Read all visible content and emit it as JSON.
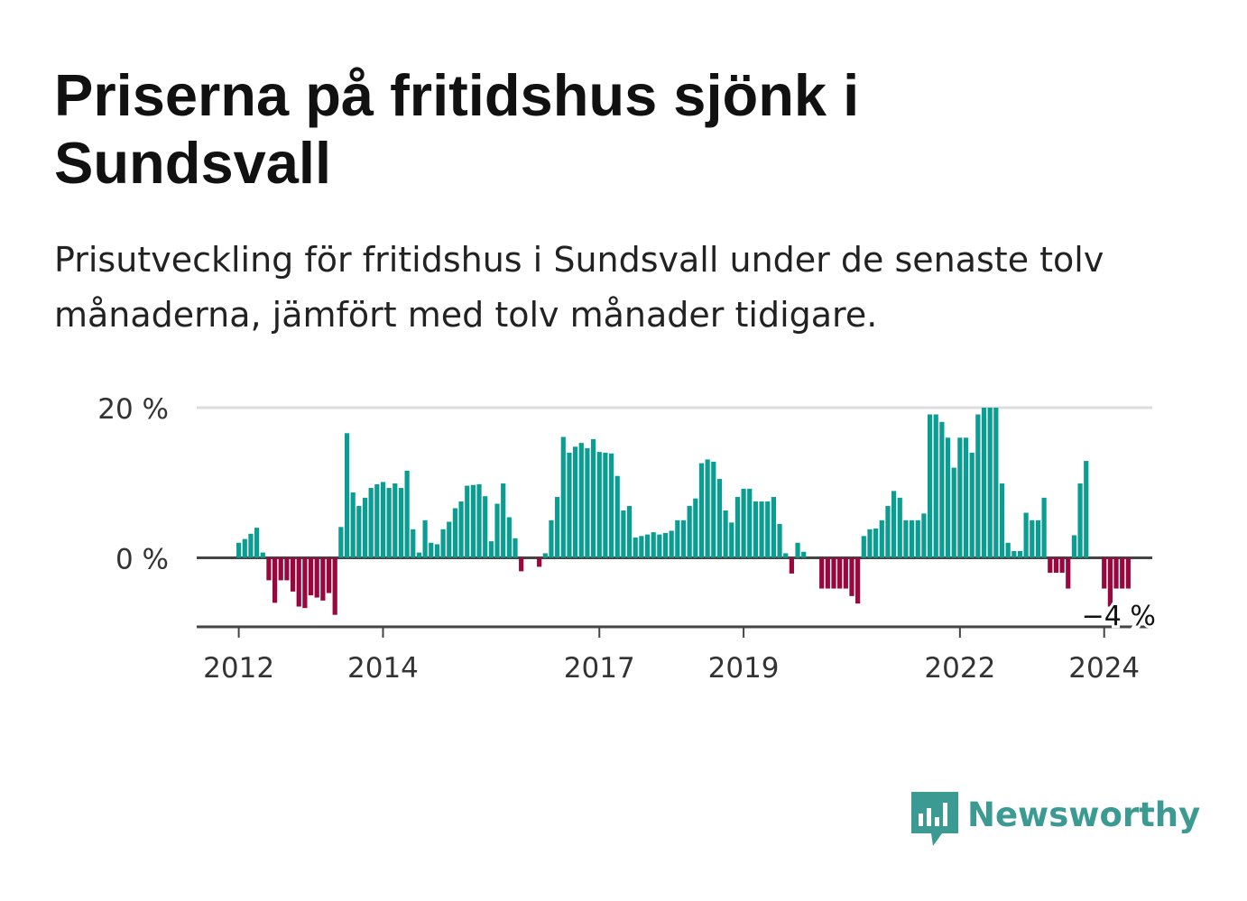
{
  "title": "Priserna på fritidshus sjönk i Sundsvall",
  "subtitle": "Prisutveckling för fritidshus i Sundsvall under de senaste tolv månaderna, jämfört med tolv månader tidigare.",
  "brand": {
    "name": "Newsworthy",
    "color": "#3b9a91"
  },
  "colors": {
    "positive": "#0a9e92",
    "negative": "#99073e",
    "grid": "#dddddd",
    "axis": "#444444"
  },
  "chart_data": {
    "type": "bar",
    "ylabel_format": "{v} %",
    "yticks": [
      0,
      20
    ],
    "ytick_labels": [
      "0 %",
      "20 %"
    ],
    "ylim": [
      -9.2,
      20
    ],
    "xlim": [
      "2011-06",
      "2024-09"
    ],
    "xticks": [
      {
        "label": "2012",
        "date": "2012-01"
      },
      {
        "label": "2014",
        "date": "2014-01"
      },
      {
        "label": "2017",
        "date": "2017-01"
      },
      {
        "label": "2019",
        "date": "2019-01"
      },
      {
        "label": "2022",
        "date": "2022-01"
      },
      {
        "label": "2024",
        "date": "2024-01"
      }
    ],
    "annotation": {
      "text": "−4 %",
      "date": "2024-01",
      "value": -4
    },
    "grid": true,
    "legend": "none",
    "start": "2012-01",
    "values": [
      2,
      2.5,
      3.2,
      4,
      0.7,
      -3,
      -6,
      -3,
      -3,
      -4.5,
      -6.5,
      -6.7,
      -5,
      -5.3,
      -5.7,
      -4.7,
      -7.6,
      4.1,
      16.6,
      8.7,
      6.9,
      8,
      9.3,
      9.8,
      10.1,
      9.3,
      9.9,
      9.3,
      11.6,
      3.8,
      0.7,
      5,
      2,
      1.8,
      3.8,
      4.8,
      6.6,
      7.5,
      9.6,
      9.7,
      9.8,
      8.2,
      2.2,
      7.2,
      9.9,
      5.4,
      2.6,
      -1.8,
      0,
      0,
      -1.2,
      0.6,
      5,
      8.1,
      16.1,
      14,
      14.8,
      15.3,
      14.6,
      15.8,
      14.1,
      14,
      13.9,
      10.9,
      6.3,
      6.9,
      2.7,
      2.9,
      3.1,
      3.4,
      3.1,
      3.3,
      3.6,
      5,
      5,
      6.9,
      7.9,
      12.6,
      13.1,
      12.8,
      10.5,
      6.3,
      4.7,
      8.1,
      9.2,
      9.2,
      7.5,
      7.5,
      7.5,
      8.1,
      4.5,
      0.6,
      -2.1,
      2,
      0.8,
      0,
      0,
      -4.1,
      -4.1,
      -4.1,
      -4.1,
      -4.1,
      -5.1,
      -6.1,
      2.9,
      3.8,
      3.9,
      5,
      6.9,
      8.9,
      8,
      5,
      5,
      5,
      5.9,
      19.1,
      19.1,
      18.1,
      16,
      12,
      16,
      16,
      14,
      19.1,
      20,
      20,
      20,
      9.9,
      2,
      0.9,
      0.9,
      6,
      5,
      5,
      8,
      -2,
      -2,
      -2,
      -4.1,
      3,
      9.9,
      12.9,
      0,
      0,
      -4.1,
      -6.5,
      -4.1,
      -4.1,
      -4.1
    ]
  }
}
